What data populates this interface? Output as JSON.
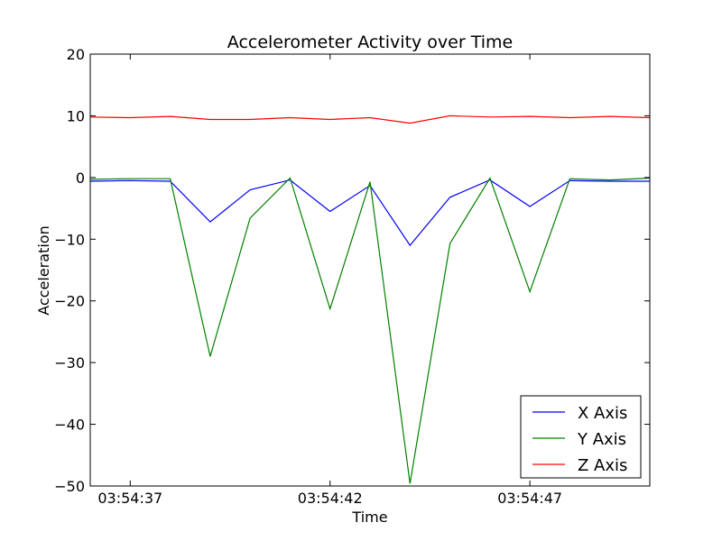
{
  "chart_data": {
    "type": "line",
    "title": "Accelerometer Activity over Time",
    "xlabel": "Time",
    "ylabel": "Acceleration",
    "ylim": [
      -50,
      20
    ],
    "yticks": [
      20,
      10,
      0,
      -10,
      -20,
      -30,
      -40,
      -50
    ],
    "ytick_labels": [
      "20",
      "10",
      "0",
      "−10",
      "−20",
      "−30",
      "−40",
      "−50"
    ],
    "xlim": [
      0,
      14
    ],
    "x": [
      0,
      1,
      2,
      3,
      4,
      5,
      6,
      7,
      8,
      9,
      10,
      11,
      12,
      13,
      14
    ],
    "xticks": [
      1,
      6,
      11
    ],
    "xtick_labels": [
      "03:54:37",
      "03:54:42",
      "03:54:47"
    ],
    "grid": false,
    "legend_position": "lower-right",
    "series": [
      {
        "name": "X Axis",
        "color": "#0000ff",
        "values": [
          -0.6,
          -0.5,
          -0.6,
          -7.2,
          -2.0,
          -0.4,
          -5.5,
          -1.3,
          -11.0,
          -3.2,
          -0.4,
          -4.7,
          -0.5,
          -0.6,
          -0.6
        ]
      },
      {
        "name": "Y Axis",
        "color": "#008000",
        "values": [
          -0.3,
          -0.2,
          -0.2,
          -29.0,
          -6.6,
          -0.1,
          -21.3,
          -0.7,
          -49.6,
          -10.7,
          -0.1,
          -18.5,
          -0.2,
          -0.4,
          -0.1
        ]
      },
      {
        "name": "Z Axis",
        "color": "#ff0000",
        "values": [
          9.8,
          9.7,
          9.9,
          9.4,
          9.4,
          9.7,
          9.4,
          9.7,
          8.8,
          10.0,
          9.8,
          9.9,
          9.7,
          9.9,
          9.7
        ]
      }
    ]
  }
}
